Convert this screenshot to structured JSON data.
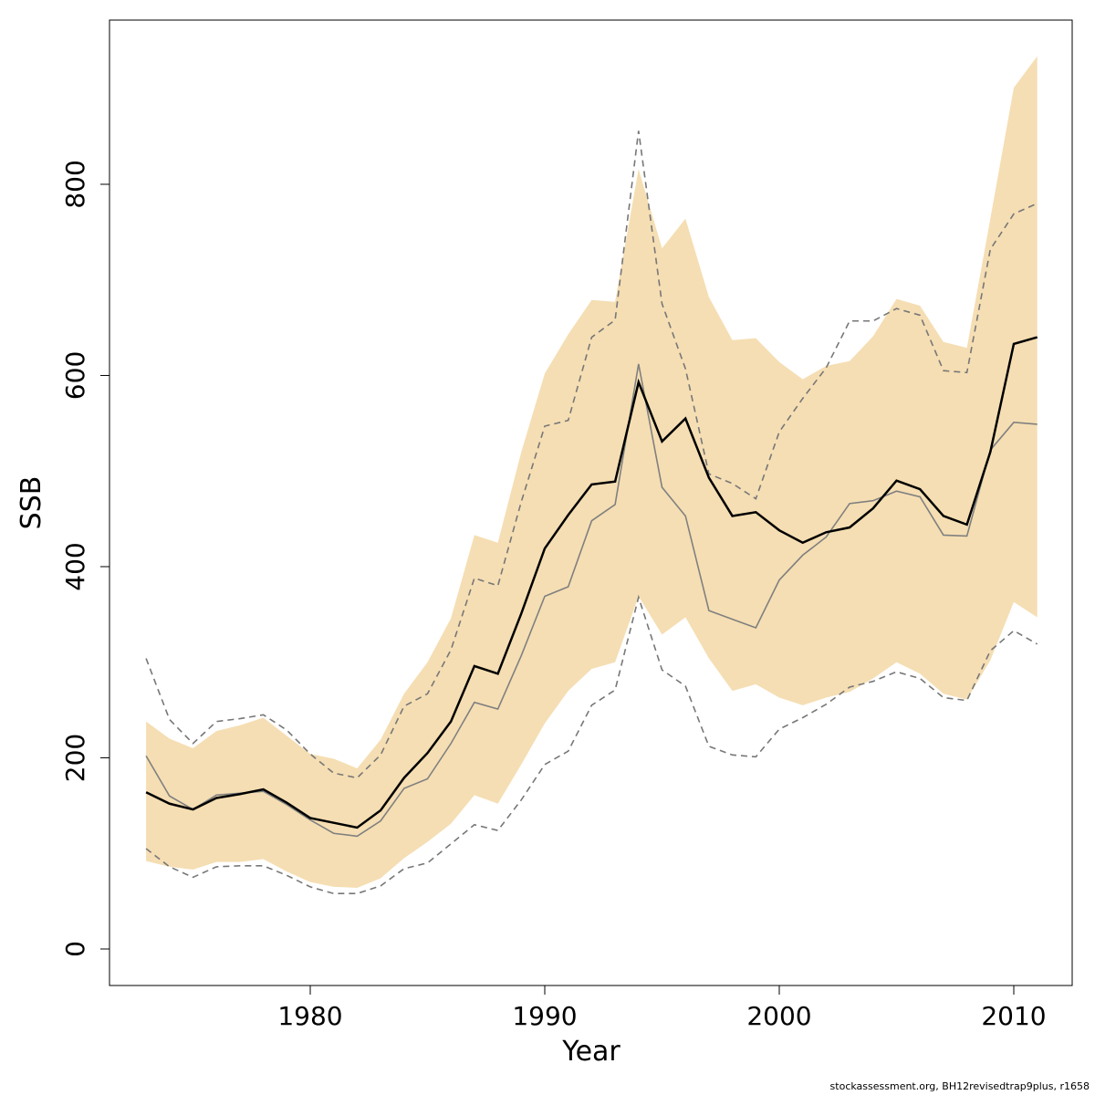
{
  "chart_data": {
    "type": "line",
    "x_label": "Year",
    "y_label": "SSB",
    "footnote": "stockassessment.org, BH12revisedtrap9plus, r1658",
    "x": [
      1973,
      1974,
      1975,
      1976,
      1977,
      1978,
      1979,
      1980,
      1981,
      1982,
      1983,
      1984,
      1985,
      1986,
      1987,
      1988,
      1989,
      1990,
      1991,
      1992,
      1993,
      1994,
      1995,
      1996,
      1997,
      1998,
      1999,
      2000,
      2001,
      2002,
      2003,
      2004,
      2005,
      2006,
      2007,
      2008,
      2009,
      2010,
      2011
    ],
    "band": {
      "color": "#f5deb3",
      "upper": [
        238,
        220,
        210,
        228,
        234,
        242,
        223,
        204,
        199,
        189,
        219,
        267,
        300,
        346,
        433,
        425,
        520,
        602,
        643,
        679,
        677,
        816,
        733,
        764,
        682,
        637,
        639,
        614,
        596,
        610,
        615,
        641,
        680,
        673,
        635,
        629,
        764,
        901,
        934
      ],
      "lower": [
        92,
        86,
        83,
        91,
        91,
        94,
        81,
        70,
        65,
        64,
        74,
        95,
        112,
        131,
        161,
        152,
        193,
        236,
        270,
        293,
        300,
        369,
        329,
        347,
        304,
        270,
        277,
        263,
        255,
        263,
        269,
        283,
        300,
        288,
        267,
        261,
        302,
        363,
        347
      ]
    },
    "lines": [
      {
        "color": "#777777",
        "dash": true,
        "values": [
          304,
          240,
          215,
          238,
          241,
          245,
          229,
          204,
          184,
          179,
          203,
          254,
          267,
          313,
          388,
          380,
          468,
          547,
          553,
          640,
          658,
          856,
          675,
          607,
          497,
          487,
          471,
          541,
          576,
          608,
          657,
          657,
          670,
          663,
          605,
          603,
          732,
          769,
          780
        ]
      },
      {
        "color": "#777777",
        "dash": true,
        "values": [
          105,
          86,
          75,
          86,
          87,
          87,
          77,
          65,
          58,
          58,
          66,
          84,
          90,
          110,
          130,
          124,
          156,
          193,
          207,
          255,
          271,
          368,
          292,
          275,
          212,
          203,
          201,
          230,
          242,
          256,
          274,
          280,
          290,
          283,
          263,
          260,
          312,
          333,
          319
        ]
      },
      {
        "color": "#808080",
        "dash": false,
        "values": [
          202,
          160,
          146,
          161,
          163,
          165,
          151,
          135,
          121,
          118,
          134,
          168,
          178,
          215,
          258,
          251,
          307,
          369,
          379,
          448,
          465,
          612,
          483,
          453,
          354,
          345,
          336,
          386,
          412,
          431,
          466,
          469,
          479,
          473,
          433,
          432,
          522,
          551,
          549
        ]
      },
      {
        "color": "#000000",
        "dash": false,
        "values": [
          164,
          152,
          146,
          158,
          162,
          167,
          153,
          137,
          132,
          127,
          145,
          179,
          205,
          238,
          296,
          288,
          351,
          419,
          454,
          486,
          489,
          593,
          531,
          555,
          493,
          453,
          457,
          438,
          425,
          436,
          441,
          461,
          490,
          481,
          453,
          444,
          520,
          633,
          640
        ]
      }
    ],
    "xlim": [
      1971.44,
      2012.49
    ],
    "ylim": [
      -38.2,
      971.8
    ],
    "xticks": [
      1980,
      1990,
      2000,
      2010
    ],
    "yticks": [
      0,
      200,
      400,
      600,
      800
    ]
  }
}
